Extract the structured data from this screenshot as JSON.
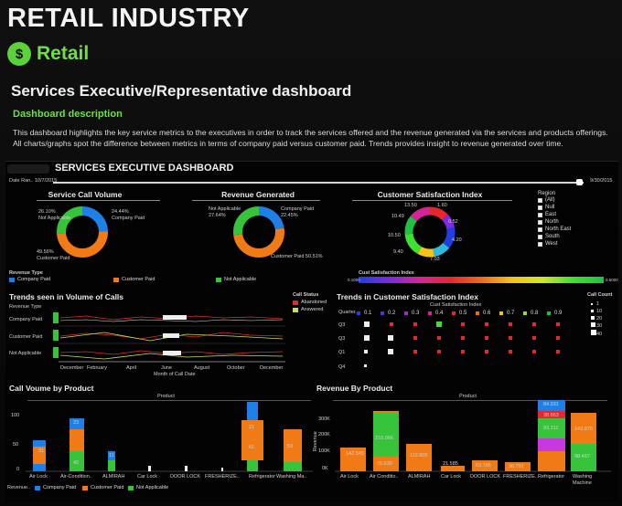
{
  "header": {
    "title": "RETAIL INDUSTRY",
    "brand": "Retail",
    "dashboard_title": "Services Executive/Representative dashboard",
    "desc_heading": "Dashboard description",
    "description": "This dashboard highlights the key service metrics to the executives in order to track the services offered and the revenue generated via the services and products offerings. All charts/graphs spot the difference between metrics in terms of company paid versus customer paid. Trends provides insight to revenue generated over time."
  },
  "exec": {
    "title": "SERVICES EXECUTIVE DASHBOARD",
    "date_label": "Date Ran..",
    "date_start": "10/7/2015",
    "date_end": "9/30/2015"
  },
  "colors": {
    "company_paid": "#1e7fe6",
    "customer_paid": "#f07a16",
    "not_applicable": "#38c43a"
  },
  "service_call_volume": {
    "title": "Service Call Volume",
    "labels": [
      "26.10%",
      "Not Applicable",
      "24.44%",
      "Company Paid",
      "49.56%",
      "Customer Paid"
    ]
  },
  "revenue_generated": {
    "title": "Revenue Generated",
    "labels": [
      "Not Applicable",
      "27.64%",
      "Company Paid",
      "22.45%",
      "Customer Paid",
      "50.51%"
    ]
  },
  "csi": {
    "title": "Customer Satisfaction Index",
    "labels": [
      "13.50",
      "1.60",
      "10.49",
      "0.52",
      "10.50",
      "4.20",
      "9.40",
      "7.03"
    ],
    "grad_title": "Cust Satisfaction Index",
    "grad_min": "0.1000",
    "grad_max": "0.5000"
  },
  "region": {
    "title": "Region",
    "items": [
      "(All)",
      "Null",
      "East",
      "North",
      "North East",
      "South",
      "West"
    ]
  },
  "revenue_type": {
    "title": "Revenue Type",
    "items": [
      "Company Paid",
      "Customer Paid",
      "Not Applicable"
    ]
  },
  "trends_calls": {
    "title": "Trends seen in Volume of Calls",
    "col_header": "Revenue Type",
    "rows": [
      "Company Paid",
      "Customer Paid",
      "Not Applicable"
    ],
    "y_label": "Count",
    "months": [
      "December",
      "February",
      "April",
      "June",
      "August",
      "October",
      "December"
    ],
    "x_title": "Month of Call Date",
    "call_status_title": "Call Status",
    "call_status": [
      "Abandoned",
      "Answered"
    ]
  },
  "trends_csi": {
    "title": "Trends in Customer Satisfaction Index",
    "row_header": "Quarter..",
    "col_title": "Cust Satisfaction Index",
    "cols": [
      "0.1",
      "0.2",
      "0.3",
      "0.4",
      "0.5",
      "0.6",
      "0.7",
      "0.8",
      "0.9"
    ],
    "rows": [
      "Q3",
      "Q3",
      "Q1",
      "Q4"
    ],
    "call_count_title": "Call Count",
    "call_count": [
      "1",
      "10",
      "20",
      "30",
      "40"
    ]
  },
  "call_volume_by_product": {
    "title": "Call Voume by Product",
    "header": "Product",
    "y_ticks": [
      "100",
      "50",
      "0"
    ],
    "products": [
      "Air Lock",
      "Air-Condition..",
      "ALMIRAH",
      "Car Lock",
      "DOOR LOCK",
      "FRESHERIZE..",
      "Refrigerator",
      "Washing Ma.."
    ],
    "footer": "Revenue..",
    "labels": [
      "31",
      "23",
      "42",
      "11",
      "21",
      "61",
      "53"
    ]
  },
  "revenue_by_product": {
    "title": "Revenue By Product",
    "header": "Product",
    "y_label": "Revenue",
    "y_ticks": [
      "300K",
      "200K",
      "100K",
      "0K"
    ],
    "products": [
      "Air Lock",
      "Air Conditio..",
      "ALMIRAH",
      "Car Lock",
      "DOOR LOCK",
      "FRESHERIZE..",
      "Refrigerator",
      "Washing Machine"
    ],
    "labels": [
      "142.545",
      "216.066",
      "75.630",
      "112.800",
      "21.585",
      "63.785",
      "36.791",
      "84.931",
      "38.663",
      "93.211",
      "143.875",
      "98.467"
    ]
  }
}
